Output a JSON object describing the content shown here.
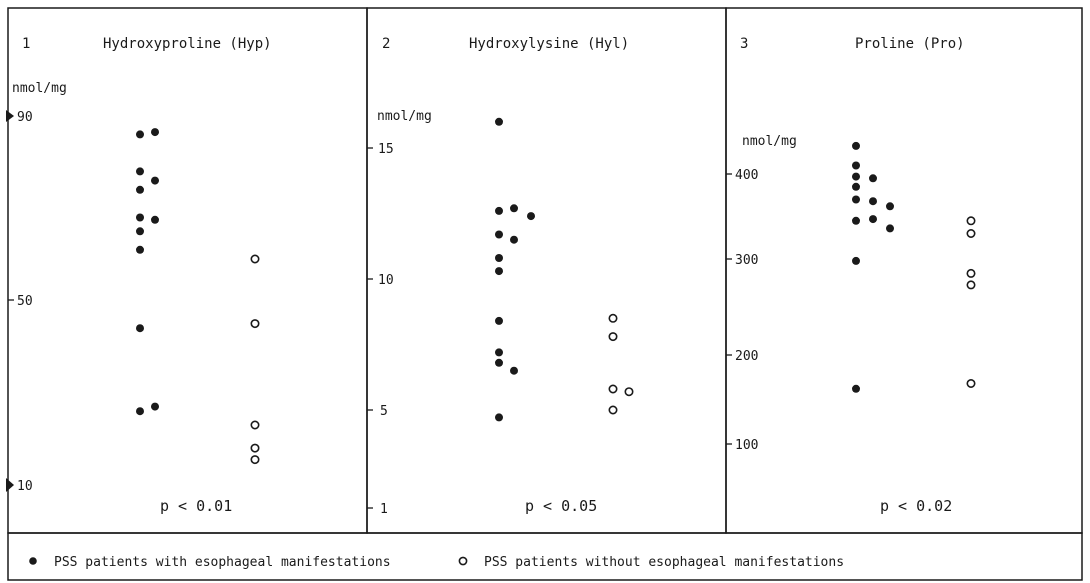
{
  "chart_data": [
    {
      "type": "scatter",
      "panel_number": "1",
      "title": "Hydroxyproline (Hyp)",
      "ylabel": "nmol/mg",
      "ylim": [
        10,
        90
      ],
      "yticks": [
        "10",
        "50",
        "90"
      ],
      "p_value": "p < 0.01",
      "series": [
        {
          "name": "PSS patients with esophageal manifestations",
          "values": [
            86,
            86.5,
            78,
            74,
            76,
            68,
            67.5,
            65,
            61,
            44,
            26,
            27
          ]
        },
        {
          "name": "PSS patients without esophageal manifestations",
          "values": [
            59,
            45,
            23,
            18,
            15.5
          ]
        }
      ]
    },
    {
      "type": "scatter",
      "panel_number": "2",
      "title": "Hydroxylysine (Hyl)",
      "ylabel": "nmol/mg",
      "ylim": [
        1,
        16
      ],
      "yticks": [
        "1",
        "5",
        "10",
        "15"
      ],
      "p_value": "p < 0.05",
      "series": [
        {
          "name": "PSS patients with esophageal manifestations",
          "values": [
            16,
            12.6,
            12.7,
            12.4,
            11.7,
            11.5,
            10.8,
            10.3,
            8.4,
            7.2,
            6.8,
            6.5,
            4.7
          ]
        },
        {
          "name": "PSS patients without esophageal manifestations",
          "values": [
            8.5,
            7.8,
            5.8,
            5.7,
            5.0
          ]
        }
      ]
    },
    {
      "type": "scatter",
      "panel_number": "3",
      "title": "Proline (Pro)",
      "ylabel": "nmol/mg",
      "ylim": [
        50,
        450
      ],
      "yticks": [
        "100",
        "200",
        "300",
        "400"
      ],
      "p_value": "p < 0.02",
      "series": [
        {
          "name": "PSS patients with esophageal manifestations",
          "values": [
            433,
            410,
            397,
            395,
            385,
            370,
            368,
            362,
            345,
            347,
            336,
            298,
            162
          ]
        },
        {
          "name": "PSS patients without esophageal manifestations",
          "values": [
            345,
            330,
            285,
            273,
            168
          ]
        }
      ]
    }
  ],
  "legend": {
    "filled_label": "PSS patients with esophageal manifestations",
    "open_label": "PSS patients without esophageal manifestations"
  }
}
